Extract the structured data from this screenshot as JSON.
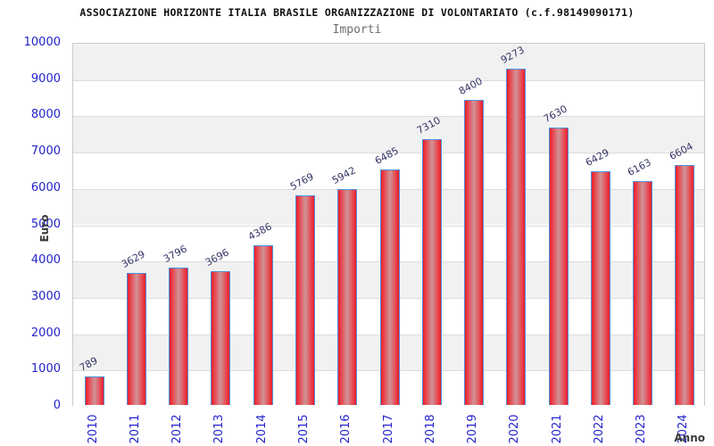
{
  "chart_data": {
    "type": "bar",
    "title": "ASSOCIAZIONE HORIZONTE ITALIA BRASILE ORGANIZZAZIONE DI VOLONTARIATO (c.f.98149090171)",
    "subtitle": "Importi",
    "xlabel": "Anno",
    "ylabel": "Euro",
    "categories": [
      "2010",
      "2011",
      "2012",
      "2013",
      "2014",
      "2015",
      "2016",
      "2017",
      "2018",
      "2019",
      "2020",
      "2021",
      "2022",
      "2023",
      "2024"
    ],
    "values": [
      789,
      3629,
      3796,
      3696,
      4386,
      5769,
      5942,
      6485,
      7310,
      8400,
      9273,
      7630,
      6429,
      6163,
      6604
    ],
    "ylim": [
      0,
      10000
    ],
    "ytick_interval": 1000,
    "y_tick_labels": [
      "0",
      "1000",
      "2000",
      "3000",
      "4000",
      "5000",
      "6000",
      "7000",
      "8000",
      "9000",
      "10000"
    ],
    "legend": "none",
    "grid": "horizontal-bands-alternating",
    "colors": {
      "bar_edge_red": "#ef1c28",
      "bar_mid_light": "#cf9398",
      "bar_border_blue": "#4d8fdb",
      "tick_label_blue": "#2323cc",
      "value_label_navy": "#333366",
      "band_gray": "#f1f1f1",
      "gridline": "#dcdcdc",
      "title_color": "#111111",
      "subtitle_color": "#6e6e6e"
    }
  }
}
